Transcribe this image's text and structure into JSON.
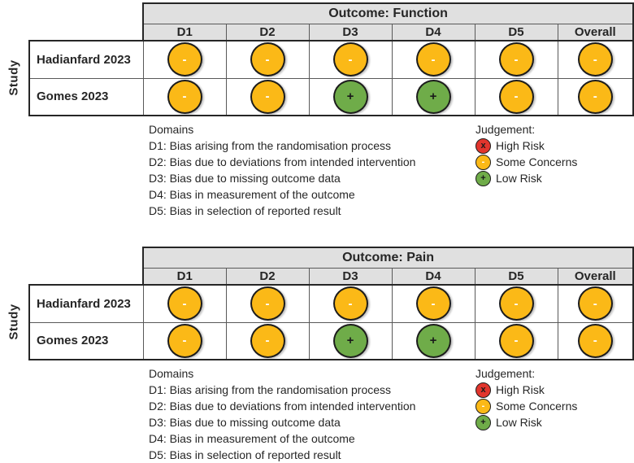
{
  "colors": {
    "header_bg": "#E0E0E0",
    "frame": "#262626",
    "grid": "#595959"
  },
  "legend": {
    "domains_title": "Domains",
    "domains": [
      "D1: Bias arising from the randomisation process",
      "D2: Bias due to deviations from intended intervention",
      "D3: Bias due to missing outcome data",
      "D4: Bias in measurement of the outcome",
      "D5: Bias in selection of reported result"
    ],
    "judgement_title": "Judgement:",
    "judgement": [
      {
        "label": "High Risk",
        "symbol": "x",
        "color": "#E1352D",
        "symbol_color": "#1a1a1a"
      },
      {
        "label": "Some Concerns",
        "symbol": "-",
        "color": "#FBB917",
        "symbol_color": "#ffffff"
      },
      {
        "label": "Low Risk",
        "symbol": "+",
        "color": "#6FAC49",
        "symbol_color": "#1a1a1a"
      }
    ]
  },
  "chart_data": [
    {
      "type": "table",
      "title": "Outcome: Function",
      "row_axis_label": "Study",
      "columns": [
        "D1",
        "D2",
        "D3",
        "D4",
        "D5",
        "Overall"
      ],
      "rows": [
        "Hadianfard 2023",
        "Gomes 2023"
      ],
      "values": [
        [
          "Some Concerns",
          "Some Concerns",
          "Some Concerns",
          "Some Concerns",
          "Some Concerns",
          "Some Concerns"
        ],
        [
          "Some Concerns",
          "Some Concerns",
          "Low Risk",
          "Low Risk",
          "Some Concerns",
          "Some Concerns"
        ]
      ]
    },
    {
      "type": "table",
      "title": "Outcome: Pain",
      "row_axis_label": "Study",
      "columns": [
        "D1",
        "D2",
        "D3",
        "D4",
        "D5",
        "Overall"
      ],
      "rows": [
        "Hadianfard 2023",
        "Gomes 2023"
      ],
      "values": [
        [
          "Some Concerns",
          "Some Concerns",
          "Some Concerns",
          "Some Concerns",
          "Some Concerns",
          "Some Concerns"
        ],
        [
          "Some Concerns",
          "Some Concerns",
          "Low Risk",
          "Low Risk",
          "Some Concerns",
          "Some Concerns"
        ]
      ]
    }
  ]
}
